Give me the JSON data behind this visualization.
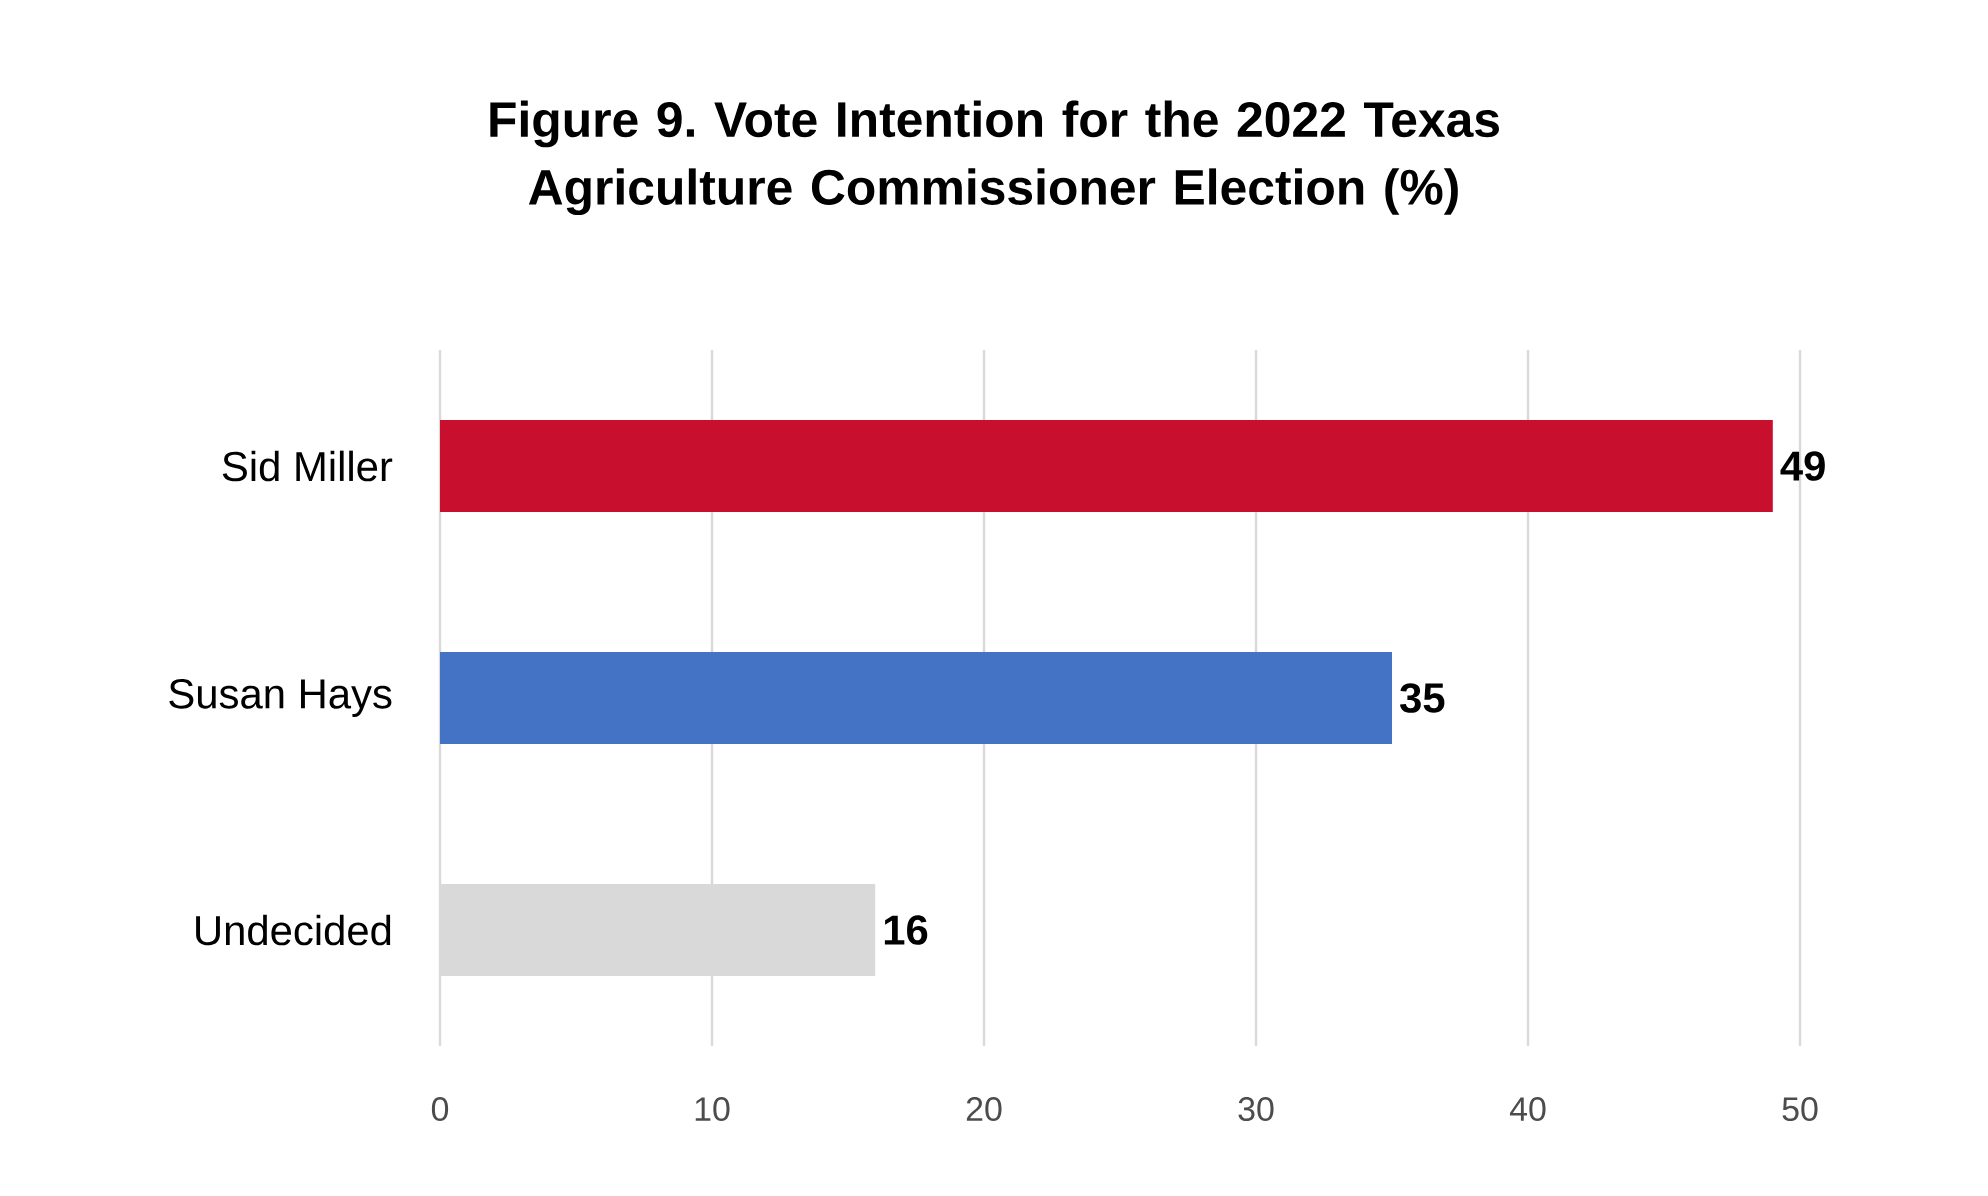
{
  "chart_data": {
    "type": "bar",
    "orientation": "horizontal",
    "title": "Figure 9. Vote Intention for the 2022 Texas Agriculture Commissioner Election (%)",
    "categories": [
      "Sid Miller",
      "Susan Hays",
      "Undecided"
    ],
    "values": [
      49,
      35,
      16
    ],
    "colors": [
      "#c8102e",
      "#4472c4",
      "#d9d9d9"
    ],
    "xlim": [
      0,
      50
    ],
    "xticks": [
      0,
      10,
      20,
      30,
      40,
      50
    ],
    "grid": "x",
    "data_labels": true
  }
}
